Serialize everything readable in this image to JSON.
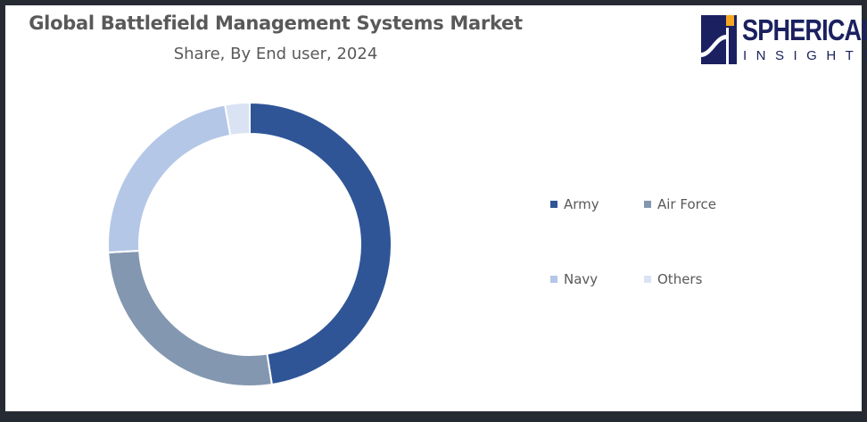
{
  "logo": {
    "line1": "SPHERICAL",
    "line2": "INSIGHTS",
    "colors": {
      "navy": "#1b2160",
      "orange": "#f5a623"
    }
  },
  "chart_data": {
    "type": "pie",
    "donut": true,
    "title": "Global Battlefield Management Systems Market",
    "subtitle": "Share, By End user, 2024",
    "categories": [
      "Army",
      "Air Force",
      "Navy",
      "Others"
    ],
    "values": [
      47.5,
      26.6,
      23.1,
      2.8
    ],
    "colors": [
      "#2f5597",
      "#8497b0",
      "#b4c7e7",
      "#dae3f3"
    ],
    "legend_position": "right"
  }
}
